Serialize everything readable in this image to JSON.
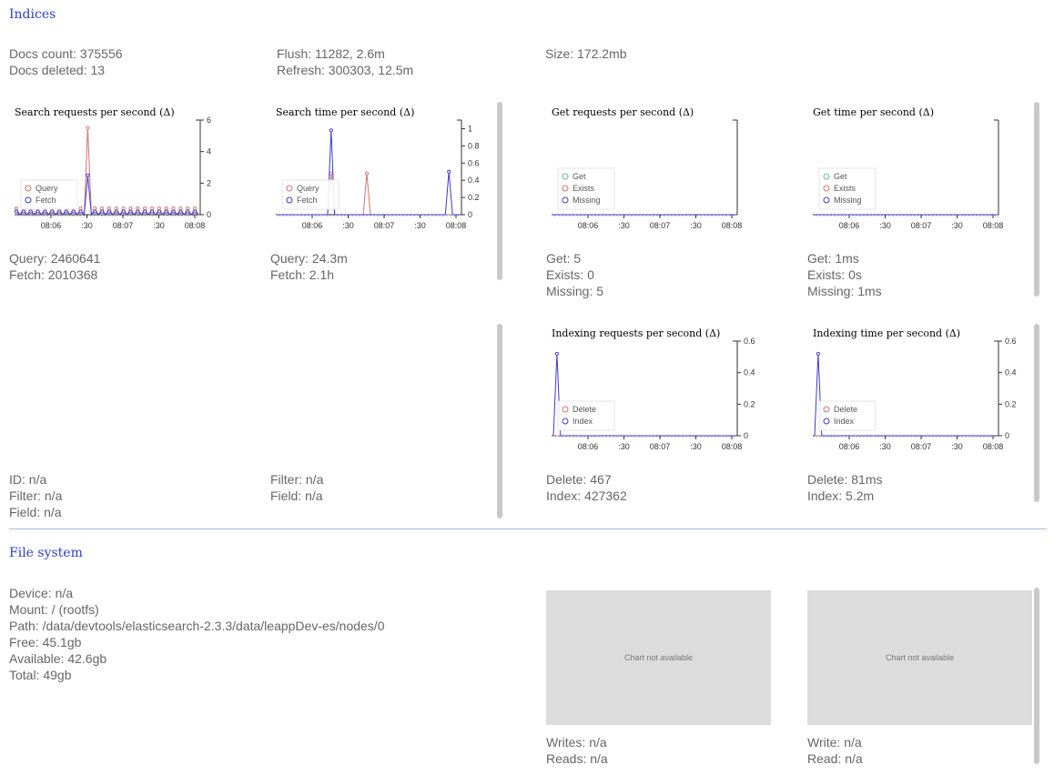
{
  "indices": {
    "heading": "Indices",
    "docs_count": "Docs count: 375556",
    "docs_deleted": "Docs deleted: 13",
    "flush": "Flush: 11282, 2.6m",
    "refresh": "Refresh: 300303, 12.5m",
    "size": "Size: 172.2mb",
    "search_stats": [
      "Query: 2460641",
      "Fetch: 2010368"
    ],
    "search_time_stats": [
      "Query: 24.3m",
      "Fetch: 2.1h"
    ],
    "get_stats": [
      "Get: 5",
      "Exists: 0",
      "Missing: 5"
    ],
    "get_time_stats": [
      "Get: 1ms",
      "Exists: 0s",
      "Missing: 1ms"
    ],
    "cache_stats": [
      "ID: n/a",
      "Filter: n/a",
      "Field: n/a"
    ],
    "cache_evict_stats": [
      "Filter: n/a",
      "Field: n/a"
    ],
    "indexing_stats": [
      "Delete: 467",
      "Index: 427362"
    ],
    "indexing_time_stats": [
      "Delete: 81ms",
      "Index: 5.2m"
    ]
  },
  "file_system": {
    "heading": "File system",
    "lines": [
      "Device: n/a",
      "Mount: / (rootfs)",
      "Path: /data/devtools/elasticsearch-2.3.3/data/leappDev-es/nodes/0",
      "Free: 45.1gb",
      "Available: 42.6gb",
      "Total: 49gb"
    ],
    "unavailable_text": "Chart not available",
    "io_stats": [
      "Writes: n/a",
      "Reads: n/a"
    ],
    "io_time_stats": [
      "Write: n/a",
      "Read: n/a"
    ]
  },
  "colors": {
    "red": "#d9706e",
    "blue": "#3a3ad6",
    "green": "#5fbf8a",
    "heading": "#2a3ed6"
  },
  "chart_data": [
    {
      "type": "line",
      "id": "search_requests",
      "title": "Search requests per second (Δ)",
      "x_ticks": [
        "08:06",
        ":30",
        "08:07",
        ":30",
        "08:08"
      ],
      "y_ticks": [
        "0",
        "2",
        "4",
        "6"
      ],
      "ylim": [
        0,
        6
      ],
      "legend_placement": "bottom-left",
      "series": [
        {
          "name": "Query",
          "color": "#d9706e",
          "values": [
            0.4,
            0,
            0.4,
            0,
            0.4,
            0,
            0.4,
            0,
            0.4,
            0,
            0.4,
            0,
            0.4,
            0,
            0.4,
            0,
            0.4,
            0,
            0.4,
            0,
            5.5,
            0,
            0.4,
            0,
            0.4,
            0,
            0.4,
            0,
            0.4,
            0,
            0.4,
            0,
            0.4,
            0,
            0.4,
            0,
            0.4,
            0,
            0.4,
            0,
            0.4,
            0,
            0.4,
            0,
            0.4,
            0,
            0.4,
            0,
            0.4,
            0,
            0.4,
            0
          ]
        },
        {
          "name": "Fetch",
          "color": "#3a3ad6",
          "values": [
            0.2,
            0,
            0.2,
            0,
            0.2,
            0,
            0.2,
            0,
            0.2,
            0,
            0.2,
            0,
            0.2,
            0,
            0.2,
            0,
            0.2,
            0,
            0.2,
            0,
            2.5,
            0,
            0.2,
            0,
            0.2,
            0,
            0.2,
            0,
            0.2,
            0,
            0.2,
            0,
            0.2,
            0,
            0.2,
            0,
            0.2,
            0,
            0.2,
            0,
            0.2,
            0,
            0.2,
            0,
            0.2,
            0,
            0.2,
            0,
            0.2,
            0,
            0.2,
            0
          ]
        }
      ]
    },
    {
      "type": "line",
      "id": "search_time",
      "title": "Search time per second (Δ)",
      "x_ticks": [
        "08:06",
        ":30",
        "08:07",
        ":30",
        "08:08"
      ],
      "y_ticks": [
        "0",
        "0.2",
        "0.4",
        "0.6",
        "0.8",
        "1"
      ],
      "ylim": [
        0,
        1.1
      ],
      "legend_placement": "bottom-left",
      "series": [
        {
          "name": "Query",
          "color": "#d9706e",
          "values": [
            0,
            0,
            0,
            0,
            0,
            0,
            0,
            0,
            0,
            0,
            0,
            0,
            0,
            0,
            0,
            0.48,
            0,
            0,
            0,
            0,
            0,
            0,
            0,
            0,
            0,
            0.48,
            0,
            0,
            0,
            0,
            0,
            0,
            0,
            0,
            0,
            0,
            0,
            0,
            0,
            0,
            0,
            0,
            0,
            0,
            0,
            0,
            0,
            0,
            0,
            0,
            0,
            0
          ]
        },
        {
          "name": "Fetch",
          "color": "#3a3ad6",
          "values": [
            0,
            0,
            0,
            0,
            0,
            0,
            0,
            0,
            0,
            0,
            0,
            0,
            0,
            0,
            0,
            0.98,
            0,
            0,
            0,
            0,
            0,
            0,
            0,
            0,
            0,
            0,
            0,
            0,
            0,
            0,
            0,
            0,
            0,
            0,
            0,
            0,
            0,
            0,
            0,
            0,
            0,
            0,
            0,
            0,
            0,
            0,
            0,
            0,
            0.5,
            0,
            0,
            0
          ]
        }
      ]
    },
    {
      "type": "line",
      "id": "get_requests",
      "title": "Get requests per second (Δ)",
      "x_ticks": [
        "08:06",
        ":30",
        "08:07",
        ":30",
        "08:08"
      ],
      "y_ticks": [],
      "ylim": [
        0,
        1
      ],
      "legend_placement": "bottom-left",
      "series": [
        {
          "name": "Get",
          "color": "#5fbf8a",
          "values": [
            0,
            0,
            0,
            0,
            0,
            0,
            0,
            0,
            0,
            0
          ]
        },
        {
          "name": "Exists",
          "color": "#d9706e",
          "values": [
            0,
            0,
            0,
            0,
            0,
            0,
            0,
            0,
            0,
            0
          ]
        },
        {
          "name": "Missing",
          "color": "#3a3ad6",
          "values": [
            0,
            0,
            0,
            0,
            0,
            0,
            0,
            0,
            0,
            0
          ]
        }
      ]
    },
    {
      "type": "line",
      "id": "get_time",
      "title": "Get time per second (Δ)",
      "x_ticks": [
        "08:06",
        ":30",
        "08:07",
        ":30",
        "08:08"
      ],
      "y_ticks": [],
      "ylim": [
        0,
        1
      ],
      "legend_placement": "bottom-left",
      "series": [
        {
          "name": "Get",
          "color": "#5fbf8a",
          "values": [
            0,
            0,
            0,
            0,
            0,
            0,
            0,
            0,
            0,
            0
          ]
        },
        {
          "name": "Exists",
          "color": "#d9706e",
          "values": [
            0,
            0,
            0,
            0,
            0,
            0,
            0,
            0,
            0,
            0
          ]
        },
        {
          "name": "Missing",
          "color": "#3a3ad6",
          "values": [
            0,
            0,
            0,
            0,
            0,
            0,
            0,
            0,
            0,
            0
          ]
        }
      ]
    },
    {
      "type": "line",
      "id": "indexing_requests",
      "title": "Indexing requests per second (Δ)",
      "x_ticks": [
        "08:06",
        ":30",
        "08:07",
        ":30",
        "08:08"
      ],
      "y_ticks": [
        "0",
        "0.2",
        "0.4",
        "0.6"
      ],
      "ylim": [
        0,
        0.6
      ],
      "legend_placement": "bottom-left",
      "series": [
        {
          "name": "Delete",
          "color": "#d9706e",
          "values": [
            0,
            0,
            0,
            0,
            0,
            0,
            0,
            0,
            0,
            0,
            0,
            0,
            0,
            0,
            0,
            0,
            0,
            0,
            0,
            0,
            0,
            0,
            0,
            0,
            0,
            0,
            0,
            0,
            0,
            0,
            0,
            0,
            0,
            0,
            0,
            0,
            0,
            0,
            0,
            0,
            0,
            0,
            0,
            0,
            0,
            0,
            0,
            0,
            0,
            0,
            0,
            0
          ]
        },
        {
          "name": "Index",
          "color": "#3a3ad6",
          "values": [
            0,
            0.52,
            0,
            0,
            0,
            0,
            0,
            0,
            0,
            0,
            0,
            0,
            0,
            0,
            0,
            0,
            0,
            0,
            0,
            0,
            0,
            0,
            0,
            0,
            0,
            0,
            0,
            0,
            0,
            0,
            0,
            0,
            0,
            0,
            0,
            0,
            0,
            0,
            0,
            0,
            0,
            0,
            0,
            0,
            0,
            0,
            0,
            0,
            0,
            0,
            0,
            0
          ]
        }
      ]
    },
    {
      "type": "line",
      "id": "indexing_time",
      "title": "Indexing time per second (Δ)",
      "x_ticks": [
        "08:06",
        ":30",
        "08:07",
        ":30",
        "08:08"
      ],
      "y_ticks": [
        "0",
        "0.2",
        "0.4",
        "0.6"
      ],
      "ylim": [
        0,
        0.6
      ],
      "legend_placement": "bottom-left",
      "series": [
        {
          "name": "Delete",
          "color": "#d9706e",
          "values": [
            0,
            0,
            0,
            0,
            0,
            0,
            0,
            0,
            0,
            0,
            0,
            0,
            0,
            0,
            0,
            0,
            0,
            0,
            0,
            0,
            0,
            0,
            0,
            0,
            0,
            0,
            0,
            0,
            0,
            0,
            0,
            0,
            0,
            0,
            0,
            0,
            0,
            0,
            0,
            0,
            0,
            0,
            0,
            0,
            0,
            0,
            0,
            0,
            0,
            0,
            0,
            0
          ]
        },
        {
          "name": "Index",
          "color": "#3a3ad6",
          "values": [
            0,
            0.52,
            0,
            0,
            0,
            0,
            0,
            0,
            0,
            0,
            0,
            0,
            0,
            0,
            0,
            0,
            0,
            0,
            0,
            0,
            0,
            0,
            0,
            0,
            0,
            0,
            0,
            0,
            0,
            0,
            0,
            0,
            0,
            0,
            0,
            0,
            0,
            0,
            0,
            0,
            0,
            0,
            0,
            0,
            0,
            0,
            0,
            0,
            0,
            0,
            0,
            0
          ]
        }
      ]
    }
  ]
}
